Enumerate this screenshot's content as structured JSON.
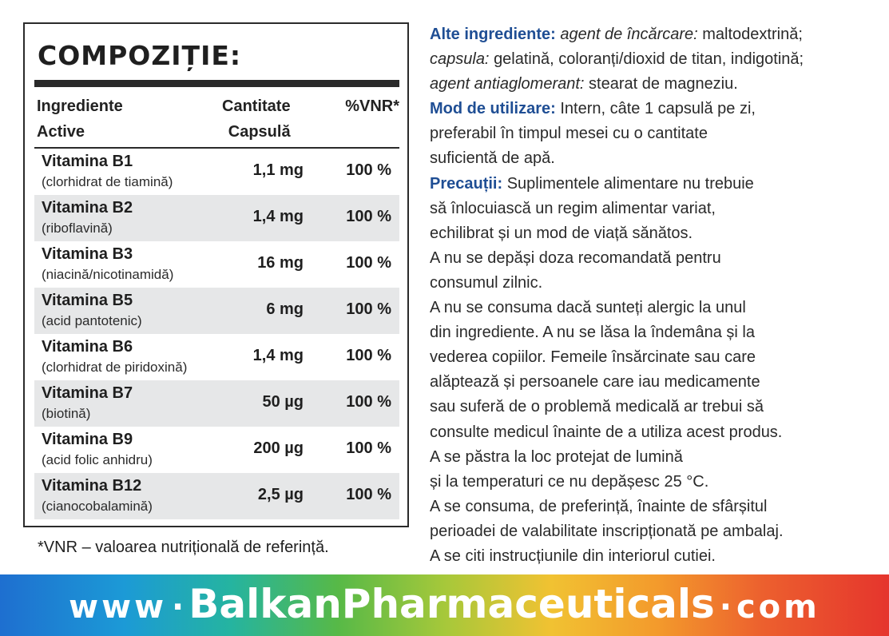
{
  "composition": {
    "title": "COMPOZIȚIE:",
    "headers": {
      "ingredients_line1": "Ingrediente",
      "ingredients_line2": "Active",
      "quantity_line1": "Cantitate",
      "quantity_line2": "Capsulă",
      "vnr": "%VNR*"
    },
    "rows": [
      {
        "name": "Vitamina B1",
        "sub": "(clorhidrat de tiamină)",
        "qty": "1,1 mg",
        "vnr": "100 %"
      },
      {
        "name": "Vitamina B2",
        "sub": "(riboflavină)",
        "qty": "1,4 mg",
        "vnr": "100 %"
      },
      {
        "name": "Vitamina B3",
        "sub": "(niacină/nicotinamidă)",
        "qty": "16 mg",
        "vnr": "100 %"
      },
      {
        "name": "Vitamina B5",
        "sub": "(acid pantotenic)",
        "qty": "6 mg",
        "vnr": "100 %"
      },
      {
        "name": "Vitamina B6",
        "sub": "(clorhidrat de piridoxină)",
        "qty": "1,4 mg",
        "vnr": "100 %"
      },
      {
        "name": "Vitamina B7",
        "sub": "(biotină)",
        "qty": "50 µg",
        "vnr": "100 %"
      },
      {
        "name": "Vitamina B9",
        "sub": "(acid folic anhidru)",
        "qty": "200 µg",
        "vnr": "100 %"
      },
      {
        "name": "Vitamina B12",
        "sub": "(cianocobalamină)",
        "qty": "2,5  µg",
        "vnr": "100 %"
      }
    ],
    "footnote": "*VNR – valoarea nutrițională de referință."
  },
  "info": {
    "other_label": "Alte ingrediente:",
    "other_line1_italic": "agent de încărcare:",
    "other_line1_rest": "maltodextrină;",
    "other_line2_italic": "capsula:",
    "other_line2_rest": "gelatină, coloranți/dioxid de titan, indigotină;",
    "other_line3_italic": "agent antiaglomerant:",
    "other_line3_rest": "stearat de magneziu.",
    "usage_label": "Mod de utilizare:",
    "usage_line1": "Intern, câte 1 capsulă pe zi,",
    "usage_line2": "preferabil în timpul mesei cu o cantitate",
    "usage_line3": "suficientă de apă.",
    "precautions_label": "Precauții:",
    "precautions_line1": "Suplimentele alimentare nu trebuie",
    "lines": [
      "să înlocuiască un regim alimentar variat,",
      "echilibrat și un mod de viață sănătos.",
      "A nu se depăși doza recomandată pentru",
      "consumul zilnic.",
      "A nu se consuma dacă sunteți alergic la unul",
      "din ingrediente. A nu se lăsa la îndemâna și la",
      "vederea copiilor. Femeile însărcinate sau care",
      "alăptează și persoanele care iau medicamente",
      "sau suferă de o problemă medicală ar trebui să",
      "consulte medicul înainte de a utiliza acest produs.",
      "A se păstra la loc protejat de lumină",
      "și la temperaturi ce nu depășesc 25 °C.",
      "A se consuma, de preferință, înainte de sfârșitul",
      "perioadei de valabilitate inscripționată pe ambalaj.",
      "A se citi instrucțiunile din interiorul cutiei."
    ]
  },
  "banner": {
    "www": "www",
    "brand": "BalkanPharmaceuticals",
    "com": "com",
    "separator": "·",
    "gradient_colors": [
      "#1e6fd0",
      "#25b4a0",
      "#57b947",
      "#f1c232",
      "#ec5f2e",
      "#e5352d"
    ]
  }
}
